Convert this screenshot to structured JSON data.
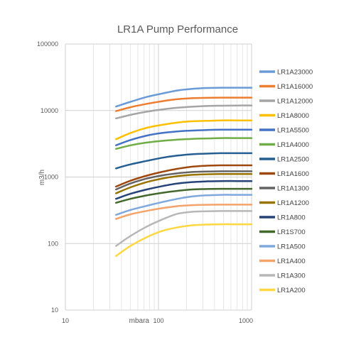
{
  "chart_data": {
    "type": "line",
    "title": "LR1A Pump Performance",
    "xlabel": "mbara",
    "ylabel": "m3/h",
    "x_scale": "log",
    "y_scale": "log",
    "xlim": [
      10,
      1000
    ],
    "ylim": [
      10,
      100000
    ],
    "x_ticks": [
      "10",
      "100",
      "1000"
    ],
    "y_ticks": [
      "10",
      "100",
      "1000",
      "10000",
      "100000"
    ],
    "grid": true,
    "legend_position": "right",
    "x": [
      35,
      50,
      75,
      110,
      160,
      230,
      330,
      470,
      700,
      1000
    ],
    "series": [
      {
        "name": "LR1A23000",
        "color": "#6a9bd8",
        "values": [
          11500,
          13500,
          16000,
          18000,
          20000,
          21200,
          21800,
          22000,
          22000,
          22000
        ]
      },
      {
        "name": "LR1A16000",
        "color": "#ed7d31",
        "values": [
          9800,
          11200,
          12600,
          13800,
          14800,
          15300,
          15500,
          15600,
          15600,
          15600
        ]
      },
      {
        "name": "LR1A12000",
        "color": "#a5a5a5",
        "values": [
          7600,
          8600,
          9600,
          10400,
          11000,
          11400,
          11700,
          11800,
          11900,
          11900
        ]
      },
      {
        "name": "LR1A8000",
        "color": "#ffc000",
        "values": [
          3700,
          4600,
          5500,
          6100,
          6600,
          6900,
          7000,
          7100,
          7100,
          7100
        ]
      },
      {
        "name": "LR1A5500",
        "color": "#4472c4",
        "values": [
          3000,
          3600,
          4200,
          4600,
          4850,
          5000,
          5100,
          5150,
          5150,
          5150
        ]
      },
      {
        "name": "LR1A4000",
        "color": "#70ad47",
        "values": [
          2650,
          3000,
          3300,
          3500,
          3650,
          3750,
          3800,
          3850,
          3850,
          3850
        ]
      },
      {
        "name": "LR1A2500",
        "color": "#255e91",
        "values": [
          1350,
          1550,
          1750,
          1950,
          2100,
          2200,
          2250,
          2280,
          2280,
          2280
        ]
      },
      {
        "name": "LR1A1600",
        "color": "#9e480e",
        "values": [
          720,
          880,
          1050,
          1200,
          1330,
          1430,
          1480,
          1500,
          1500,
          1500
        ]
      },
      {
        "name": "LR1A1300",
        "color": "#636363",
        "values": [
          650,
          800,
          950,
          1060,
          1140,
          1190,
          1210,
          1220,
          1220,
          1220
        ]
      },
      {
        "name": "LR1A1200",
        "color": "#997300",
        "values": [
          570,
          700,
          840,
          950,
          1030,
          1080,
          1100,
          1110,
          1110,
          1110
        ]
      },
      {
        "name": "LR1A800",
        "color": "#264478",
        "values": [
          470,
          560,
          650,
          730,
          800,
          840,
          860,
          870,
          870,
          870
        ]
      },
      {
        "name": "LR1S700",
        "color": "#43682b",
        "values": [
          410,
          470,
          530,
          580,
          620,
          650,
          660,
          665,
          665,
          665
        ]
      },
      {
        "name": "LR1A500",
        "color": "#7fa8dd",
        "values": [
          270,
          320,
          370,
          420,
          470,
          510,
          530,
          540,
          540,
          540
        ]
      },
      {
        "name": "LR1A400",
        "color": "#f4a36b",
        "values": [
          235,
          275,
          310,
          340,
          365,
          378,
          383,
          385,
          385,
          385
        ]
      },
      {
        "name": "LR1A300",
        "color": "#b7b7b7",
        "values": [
          92,
          130,
          180,
          230,
          280,
          300,
          305,
          308,
          308,
          308
        ]
      },
      {
        "name": "LR1A200",
        "color": "#ffd740",
        "values": [
          65,
          92,
          125,
          155,
          175,
          188,
          193,
          195,
          195,
          195
        ]
      }
    ]
  }
}
